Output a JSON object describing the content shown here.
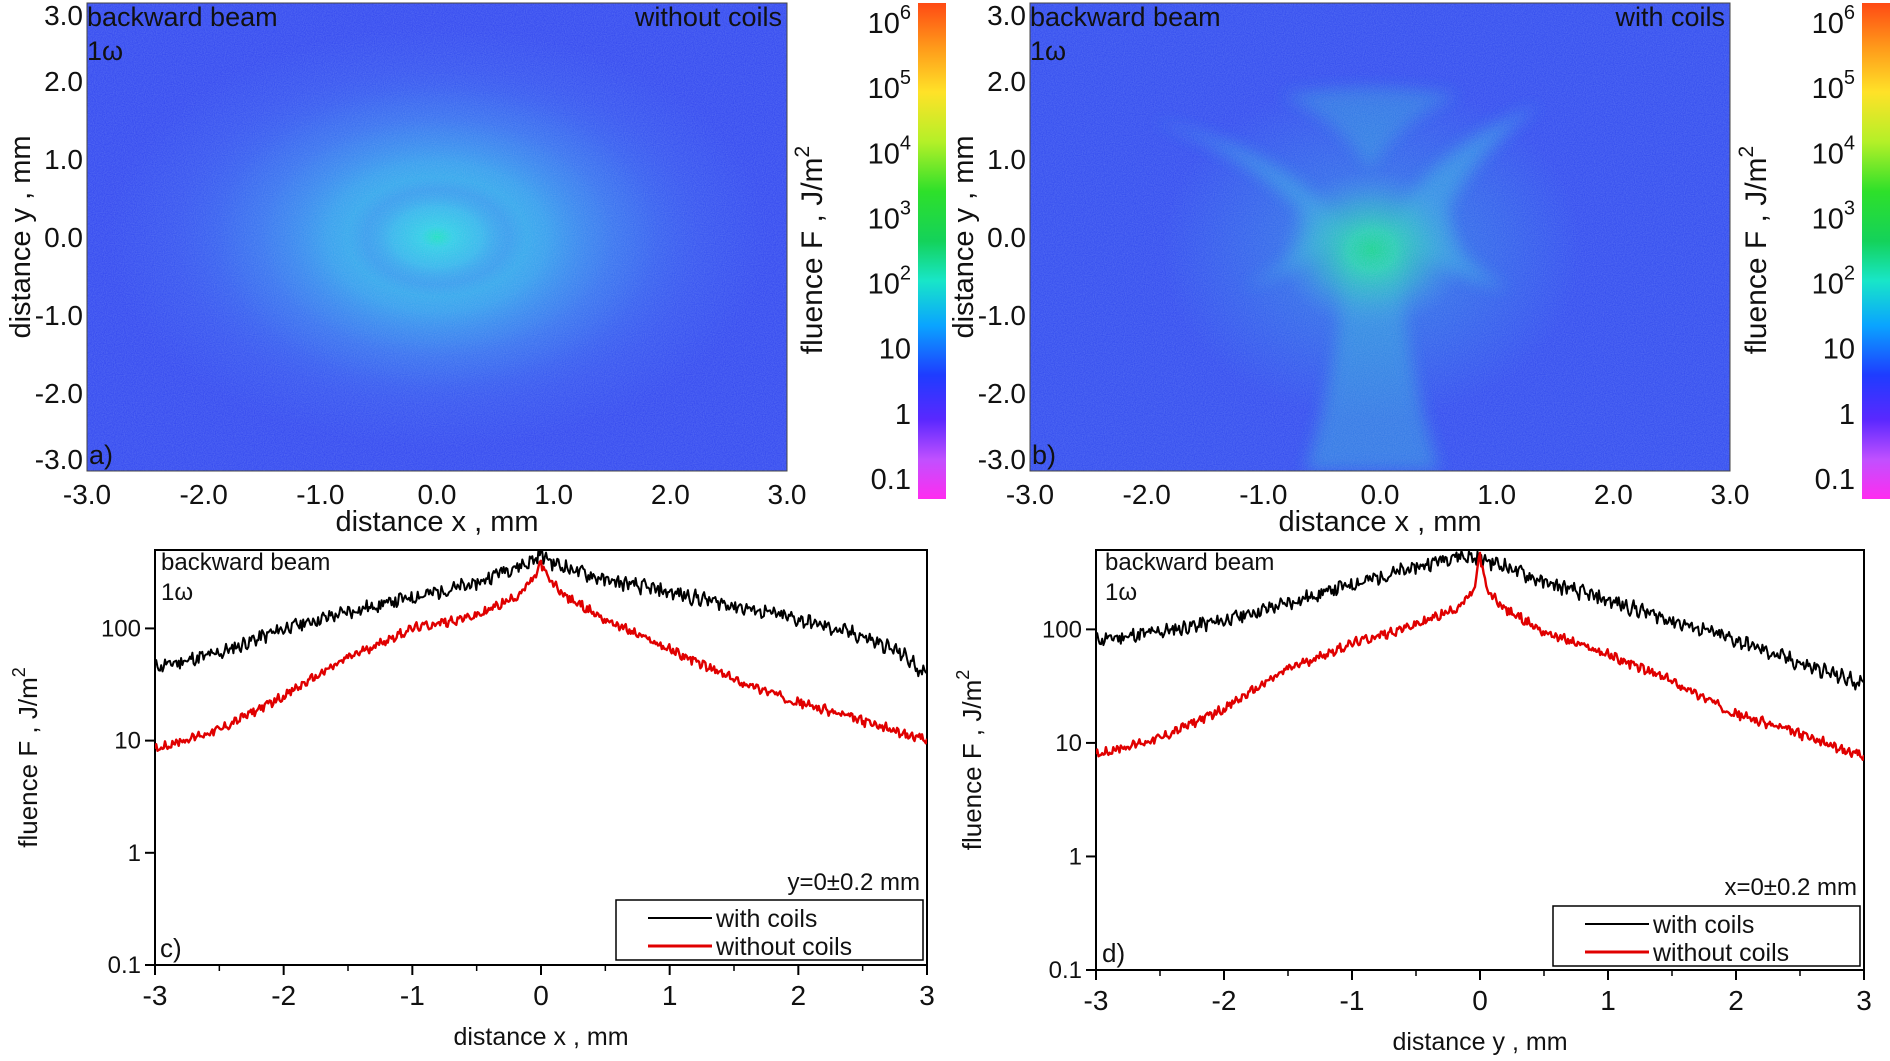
{
  "figure": {
    "panels": [
      {
        "id": "a",
        "panel_label": "a)",
        "title_left": "backward beam",
        "harmonic": "1ω",
        "title_right": "without coils",
        "mode": "without"
      },
      {
        "id": "b",
        "panel_label": "b)",
        "title_left": "backward beam",
        "harmonic": "1ω",
        "title_right": "with coils",
        "mode": "with"
      }
    ]
  },
  "chart_data": [
    {
      "type": "heatmap",
      "panel_label": "a)",
      "annotations": [
        "backward beam",
        "1ω",
        "without coils"
      ],
      "xlabel": "distance x , mm",
      "ylabel": "distance y , mm",
      "xlim": [
        -3.0,
        3.0
      ],
      "ylim": [
        -3.0,
        3.0
      ],
      "x_ticks": [
        "-3.0",
        "-2.0",
        "-1.0",
        "0.0",
        "1.0",
        "2.0",
        "3.0"
      ],
      "y_ticks": [
        "3.0",
        "2.0",
        "1.0",
        "0.0",
        "-1.0",
        "-2.0",
        "-3.0"
      ],
      "description": "elliptical fluence distribution peaked at (0,0)",
      "peak_fluence": 300,
      "colorbar": {
        "label": "fluence F , J/m",
        "label_exp": "2",
        "scale": "log",
        "range": [
          0.1,
          1000000
        ],
        "ticks": [
          {
            "base": "10",
            "exp": "6"
          },
          {
            "base": "10",
            "exp": "5"
          },
          {
            "base": "10",
            "exp": "4"
          },
          {
            "base": "10",
            "exp": "3"
          },
          {
            "base": "10",
            "exp": "2"
          },
          {
            "base": "10",
            "exp": ""
          },
          {
            "base": "1",
            "exp": ""
          },
          {
            "base": "0.1",
            "exp": ""
          }
        ]
      }
    },
    {
      "type": "heatmap",
      "panel_label": "b)",
      "annotations": [
        "backward beam",
        "1ω",
        "with coils"
      ],
      "xlabel": "distance x , mm",
      "ylabel": "distance y , mm",
      "xlim": [
        -3.0,
        3.0
      ],
      "ylim": [
        -3.0,
        3.0
      ],
      "x_ticks": [
        "-3.0",
        "-2.0",
        "-1.0",
        "0.0",
        "1.0",
        "2.0",
        "3.0"
      ],
      "y_ticks": [
        "3.0",
        "2.0",
        "1.0",
        "0.0",
        "-1.0",
        "-2.0",
        "-3.0"
      ],
      "description": "central peak near (0,-0.2) with curved wing structures and a downward stem",
      "peak_fluence": 700,
      "colorbar": {
        "label": "fluence F , J/m",
        "label_exp": "2",
        "scale": "log",
        "range": [
          0.1,
          1000000
        ],
        "ticks": [
          {
            "base": "10",
            "exp": "6"
          },
          {
            "base": "10",
            "exp": "5"
          },
          {
            "base": "10",
            "exp": "4"
          },
          {
            "base": "10",
            "exp": "3"
          },
          {
            "base": "10",
            "exp": "2"
          },
          {
            "base": "10",
            "exp": ""
          },
          {
            "base": "1",
            "exp": ""
          },
          {
            "base": "0.1",
            "exp": ""
          }
        ]
      }
    },
    {
      "type": "line",
      "panel_label": "c)",
      "annotations": [
        "backward beam",
        "1ω",
        "y=0±0.2 mm"
      ],
      "xlabel": "distance x , mm",
      "ylabel": "fluence F , J/m",
      "ylabel_exp": "2",
      "xlim": [
        -3,
        3
      ],
      "ylim": [
        0.1,
        500
      ],
      "yscale": "log",
      "x_ticks": [
        -3,
        -2,
        -1,
        0,
        1,
        2,
        3
      ],
      "y_ticks": [
        {
          "v": 100,
          "label": "100"
        },
        {
          "v": 10,
          "label": "10"
        },
        {
          "v": 1,
          "label": "1"
        },
        {
          "v": 0.1,
          "label": "0.1"
        }
      ],
      "legend_position": "bottom-right",
      "series": [
        {
          "name": "with coils",
          "color": "#000000",
          "x": [
            -3,
            -2.5,
            -2,
            -1.5,
            -1,
            -0.5,
            -0.3,
            -0.1,
            0,
            0.1,
            0.3,
            0.5,
            1,
            1.5,
            2,
            2.5,
            2.8,
            3
          ],
          "y": [
            45,
            60,
            100,
            140,
            190,
            250,
            330,
            380,
            460,
            380,
            320,
            270,
            210,
            160,
            120,
            85,
            60,
            38
          ]
        },
        {
          "name": "without coils",
          "color": "#e00000",
          "x": [
            -3,
            -2.5,
            -2,
            -1.5,
            -1,
            -0.5,
            -0.2,
            -0.05,
            0,
            0.05,
            0.2,
            0.5,
            1,
            1.5,
            2,
            2.5,
            3
          ],
          "y": [
            8.5,
            12.5,
            25,
            55,
            100,
            130,
            190,
            280,
            390,
            280,
            190,
            120,
            65,
            35,
            22,
            15,
            10
          ]
        }
      ]
    },
    {
      "type": "line",
      "panel_label": "d)",
      "annotations": [
        "backward beam",
        "1ω",
        "x=0±0.2 mm"
      ],
      "xlabel": "distance y , mm",
      "ylabel": "fluence F , J/m",
      "ylabel_exp": "2",
      "xlim": [
        -3,
        3
      ],
      "ylim": [
        0.1,
        500
      ],
      "yscale": "log",
      "x_ticks": [
        -3,
        -2,
        -1,
        0,
        1,
        2,
        3
      ],
      "y_ticks": [
        {
          "v": 100,
          "label": "100"
        },
        {
          "v": 10,
          "label": "10"
        },
        {
          "v": 1,
          "label": "1"
        },
        {
          "v": 0.1,
          "label": "0.1"
        }
      ],
      "legend_position": "bottom-right",
      "series": [
        {
          "name": "with coils",
          "color": "#000000",
          "x": [
            -3,
            -2.5,
            -2,
            -1.5,
            -1,
            -0.5,
            -0.2,
            0,
            0.2,
            0.5,
            1,
            1.5,
            2,
            2.5,
            3
          ],
          "y": [
            80,
            95,
            120,
            170,
            250,
            350,
            450,
            420,
            360,
            260,
            180,
            120,
            80,
            50,
            33
          ]
        },
        {
          "name": "without coils",
          "color": "#e00000",
          "x": [
            -3,
            -2.5,
            -2,
            -1.5,
            -1,
            -0.5,
            -0.2,
            -0.05,
            0,
            0.05,
            0.2,
            0.5,
            1,
            1.5,
            2,
            2.5,
            3
          ],
          "y": [
            8,
            11,
            20,
            45,
            75,
            110,
            150,
            210,
            460,
            220,
            150,
            95,
            60,
            35,
            18,
            12,
            7.5
          ]
        }
      ]
    }
  ]
}
